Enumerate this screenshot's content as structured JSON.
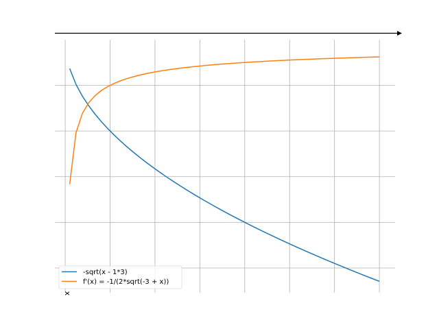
{
  "chart_data": {
    "type": "line",
    "title": "",
    "xlabel": "x",
    "ylabel": "",
    "xlim": [
      2.77,
      10.35
    ],
    "ylim": [
      -2.77,
      0.07
    ],
    "x_grid_ticks": [
      3,
      4,
      5,
      6,
      7,
      8,
      9,
      10
    ],
    "y_grid_ticks": [
      -0.5,
      -1.0,
      -1.5,
      -2.0,
      -2.5
    ],
    "grid": true,
    "tick_labels_visible": false,
    "legend_placement": "lower-left",
    "x_range": [
      3.1,
      10
    ],
    "num_points": 50,
    "series": [
      {
        "name": "-sqrt(x - 1*3)",
        "color": "#1f77b4",
        "expr": "-sqrt(x-3)"
      },
      {
        "name": "f'(x) = -1/(2*sqrt(-3 + x))",
        "color": "#ff7f0e",
        "expr": "-1/(2*sqrt(x-3))"
      }
    ]
  }
}
